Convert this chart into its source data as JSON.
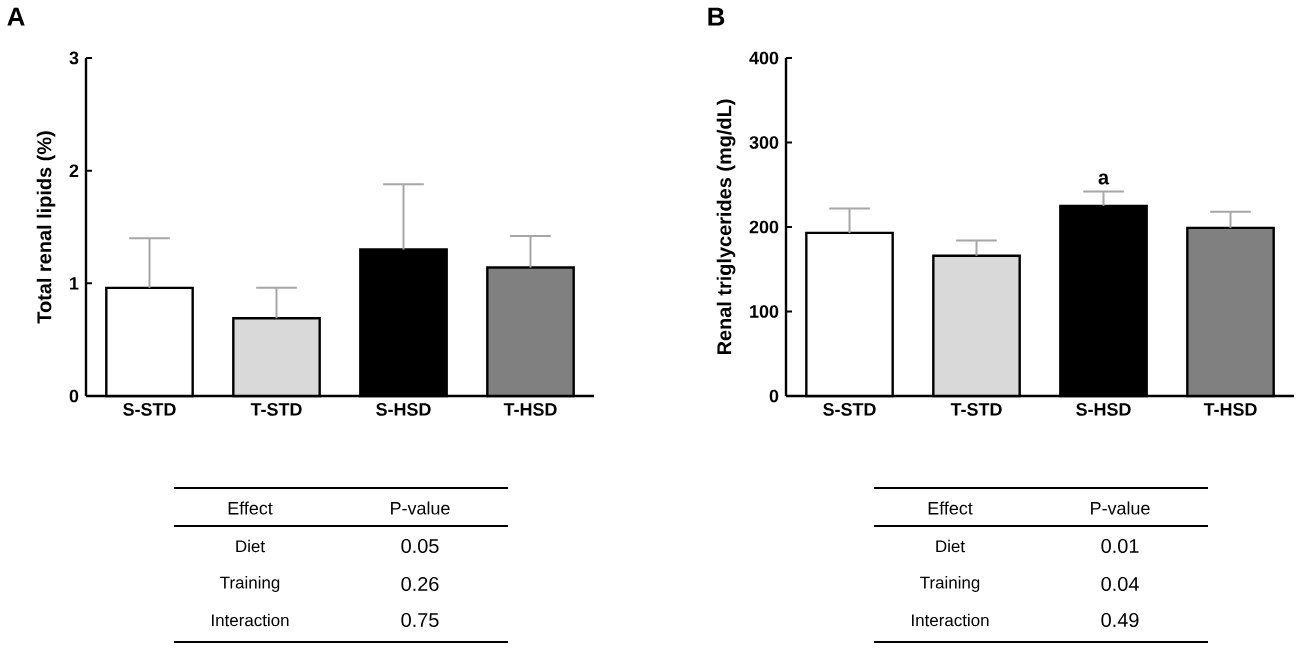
{
  "chart_data": [
    {
      "type": "bar",
      "title": "A",
      "ylabel": "Total renal lipids (%)",
      "categories": [
        "S-STD",
        "T-STD",
        "S-HSD",
        "T-HSD"
      ],
      "values": [
        0.96,
        0.69,
        1.3,
        1.14
      ],
      "errors": [
        [
          0.96,
          1.4
        ],
        [
          0.69,
          0.96
        ],
        [
          1.3,
          1.88
        ],
        [
          1.14,
          1.42
        ]
      ],
      "colors": [
        "#ffffff",
        "#d9d9d9",
        "#000000",
        "#808080"
      ],
      "ylim": [
        0,
        3
      ],
      "yticks": [
        0,
        1,
        2,
        3
      ],
      "annotations": [
        "Effect",
        "P-value",
        "Diet",
        "0.05",
        "Training",
        "0.26",
        "Interaction",
        "0.75"
      ]
    },
    {
      "type": "bar",
      "title": "B",
      "ylabel": "Renal triglycerides (mg/dL)",
      "categories": [
        "S-STD",
        "T-STD",
        "S-HSD",
        "T-HSD"
      ],
      "values": [
        193,
        166,
        225,
        199
      ],
      "errors": [
        [
          193,
          222
        ],
        [
          166,
          184
        ],
        [
          225,
          242
        ],
        [
          199,
          218
        ]
      ],
      "colors": [
        "#ffffff",
        "#d9d9d9",
        "#000000",
        "#808080"
      ],
      "ylim": [
        0,
        400
      ],
      "yticks": [
        0,
        100,
        200,
        300,
        400
      ],
      "annotations": [
        {
          "text": "a",
          "x": "S-HSD",
          "y": 242
        },
        "Effect",
        "P-value",
        "Diet",
        "0.01",
        "Training",
        "0.04",
        "Interaction",
        "0.49"
      ]
    }
  ]
}
